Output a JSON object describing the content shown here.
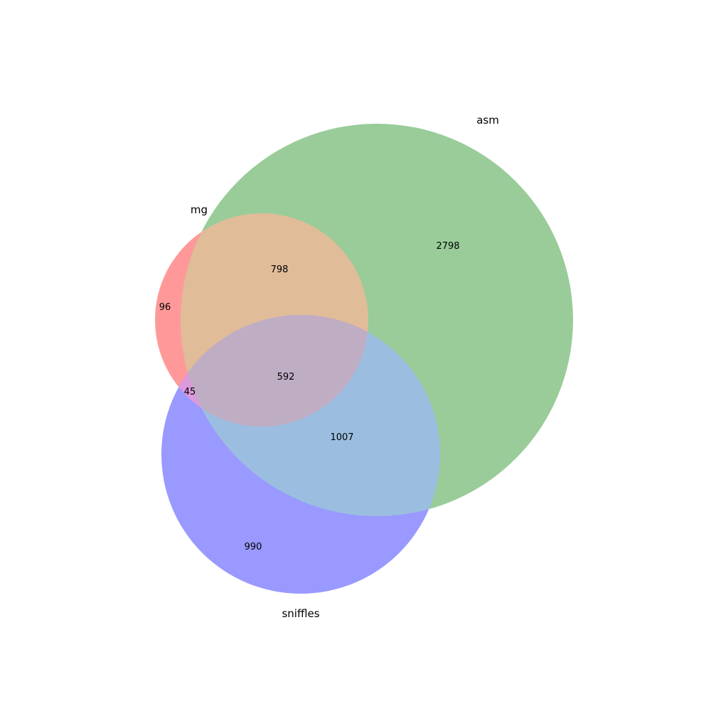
{
  "sets": [
    {
      "name": "mg",
      "color": "#ff0000"
    },
    {
      "name": "asm",
      "color": "#008000"
    },
    {
      "name": "sniffles",
      "color": "#0000ff"
    }
  ],
  "regions": {
    "mg_only": "96",
    "asm_only": "2798",
    "sniffles_only": "990",
    "mg_asm": "798",
    "mg_sniffles": "45",
    "asm_sniffles": "1007",
    "mg_asm_sniffles": "592"
  }
}
